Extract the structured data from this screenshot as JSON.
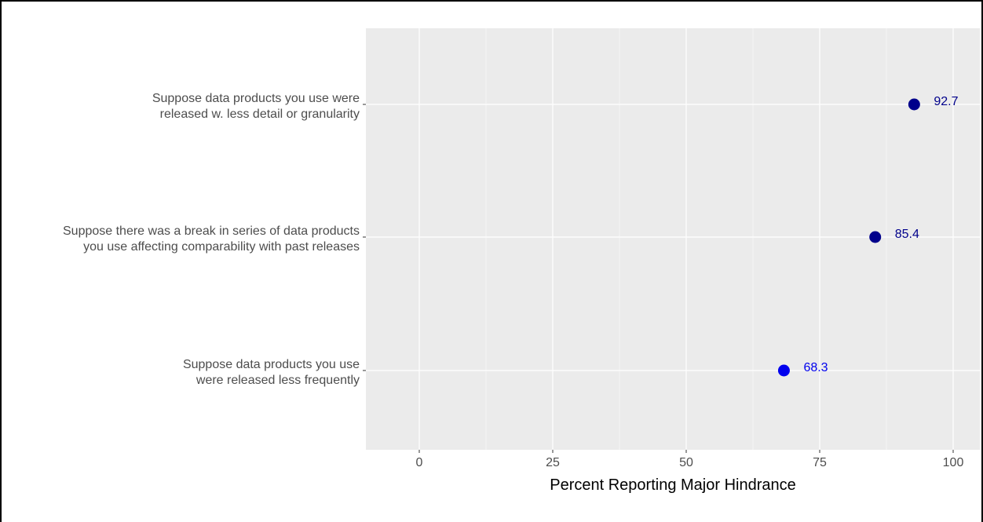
{
  "chart_data": {
    "type": "scatter",
    "title": "",
    "xlabel": "Percent Reporting Major Hindrance",
    "ylabel": "",
    "xlim": [
      -10,
      105
    ],
    "xticks": [
      0,
      25,
      50,
      75,
      100
    ],
    "grid": true,
    "categories": [
      {
        "lines": [
          "Suppose data products you use were",
          "released w. less detail or granularity"
        ],
        "value": 92.7,
        "label": "92.7",
        "color": "#00008b"
      },
      {
        "lines": [
          "Suppose there was a break in series of data products",
          "you use affecting comparability with past releases"
        ],
        "value": 85.4,
        "label": "85.4",
        "color": "#00008b"
      },
      {
        "lines": [
          "Suppose data products you use",
          "were released less frequently"
        ],
        "value": 68.3,
        "label": "68.3",
        "color": "#0000ee"
      }
    ]
  },
  "colors": {
    "panel_background": "#ebebeb",
    "grid_major": "#ffffff",
    "label_text": "#4d4d4d"
  }
}
